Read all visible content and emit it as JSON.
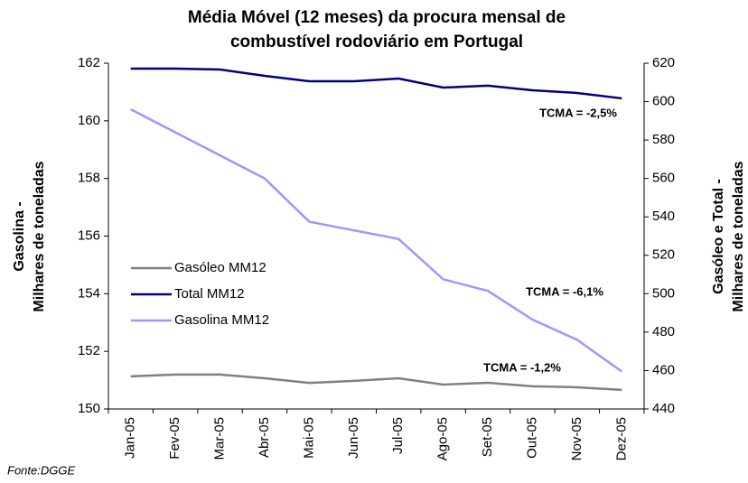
{
  "chart_data": {
    "type": "line",
    "title": [
      "Média Móvel (12 meses) da procura mensal de",
      "combustível rodoviário em Portugal"
    ],
    "ylabel": [
      "Gasolina -",
      "Milhares de toneladas"
    ],
    "y2label": [
      "Gasóleo e Total -",
      "Milhares de toneladas"
    ],
    "categories": [
      "Jan-05",
      "Fev-05",
      "Mar-05",
      "Abr-05",
      "Mai-05",
      "Jun-05",
      "Jul-05",
      "Ago-05",
      "Set-05",
      "Out-05",
      "Nov-05",
      "Dez-05"
    ],
    "series": [
      {
        "name": "Gasóleo MM12",
        "color": "#808080",
        "axis": "y2",
        "values": [
          457,
          457.9,
          457.9,
          456,
          453.6,
          454.6,
          456,
          452.7,
          453.6,
          451.8,
          451.3,
          449.9
        ]
      },
      {
        "name": "Total MM12",
        "color": "#000080",
        "axis": "y2",
        "values": [
          617.2,
          617.2,
          616.7,
          613.4,
          610.6,
          610.6,
          612,
          607.3,
          608.3,
          605.9,
          604.5,
          601.7
        ]
      },
      {
        "name": "Gasolina MM12",
        "color": "#9999ff",
        "axis": "y",
        "values": [
          160.4,
          159.6,
          158.8,
          158,
          156.5,
          156.2,
          155.9,
          154.5,
          154.1,
          153.1,
          152.4,
          151.3
        ]
      }
    ],
    "ylim": [
      150,
      162
    ],
    "yticks": [
      150,
      152,
      154,
      156,
      158,
      160,
      162
    ],
    "y2lim": [
      440,
      620
    ],
    "y2ticks": [
      440,
      460,
      480,
      500,
      520,
      540,
      560,
      580,
      600,
      620
    ],
    "annotations": [
      "TCMA = -2,5%",
      "TCMA = -6,1%",
      "TCMA = -1,2%"
    ],
    "source": "Fonte:DGGE"
  }
}
